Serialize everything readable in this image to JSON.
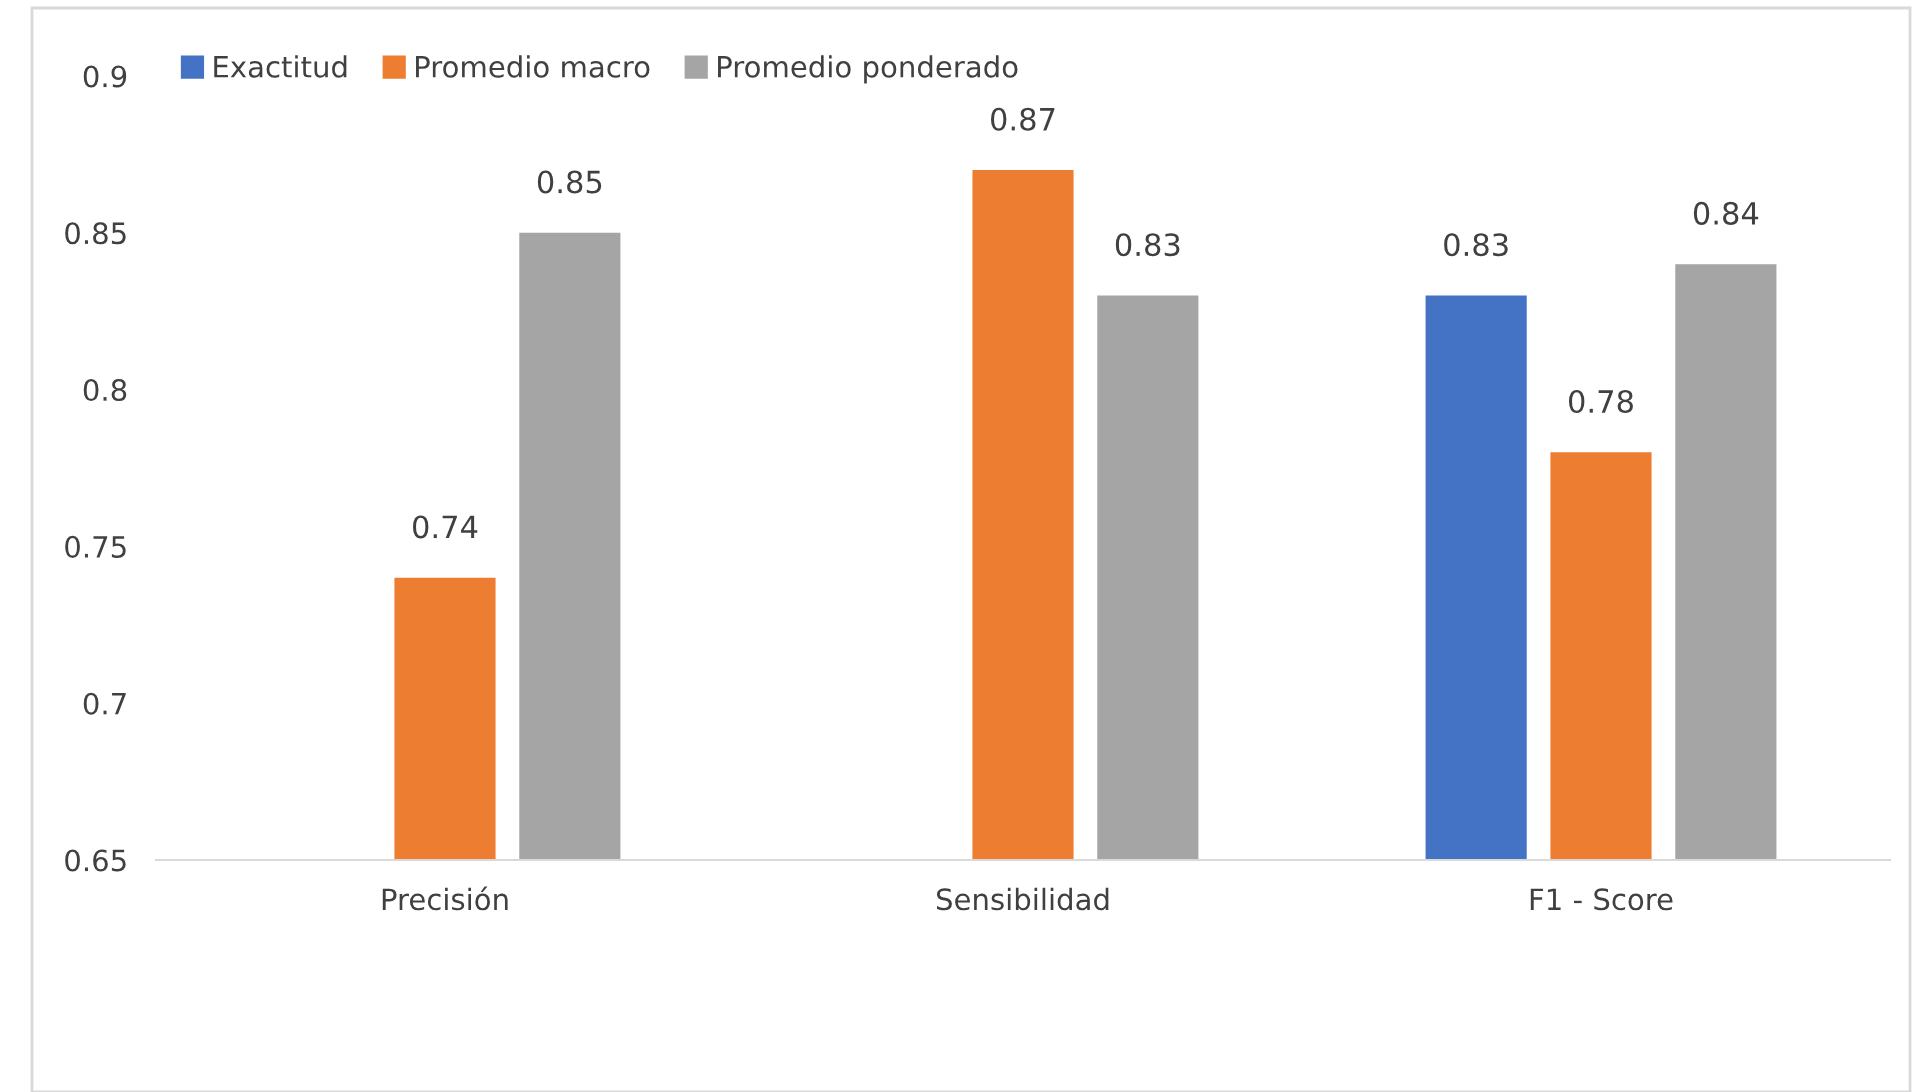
{
  "chart_data": {
    "type": "bar",
    "categories": [
      "Precisión",
      "Sensibilidad",
      "F1 - Score"
    ],
    "series": [
      {
        "name": "Exactitud",
        "color": "#4472c4",
        "values": [
          null,
          null,
          0.83
        ]
      },
      {
        "name": "Promedio macro",
        "color": "#ed7d31",
        "values": [
          0.74,
          0.87,
          0.78
        ]
      },
      {
        "name": "Promedio ponderado",
        "color": "#a5a5a5",
        "values": [
          0.85,
          0.83,
          0.84
        ]
      }
    ],
    "ylim": [
      0.65,
      0.9
    ],
    "yticks": [
      0.65,
      0.7,
      0.75,
      0.8,
      0.85,
      0.9
    ],
    "data_labels": true,
    "grid": false,
    "legend": "top left"
  }
}
